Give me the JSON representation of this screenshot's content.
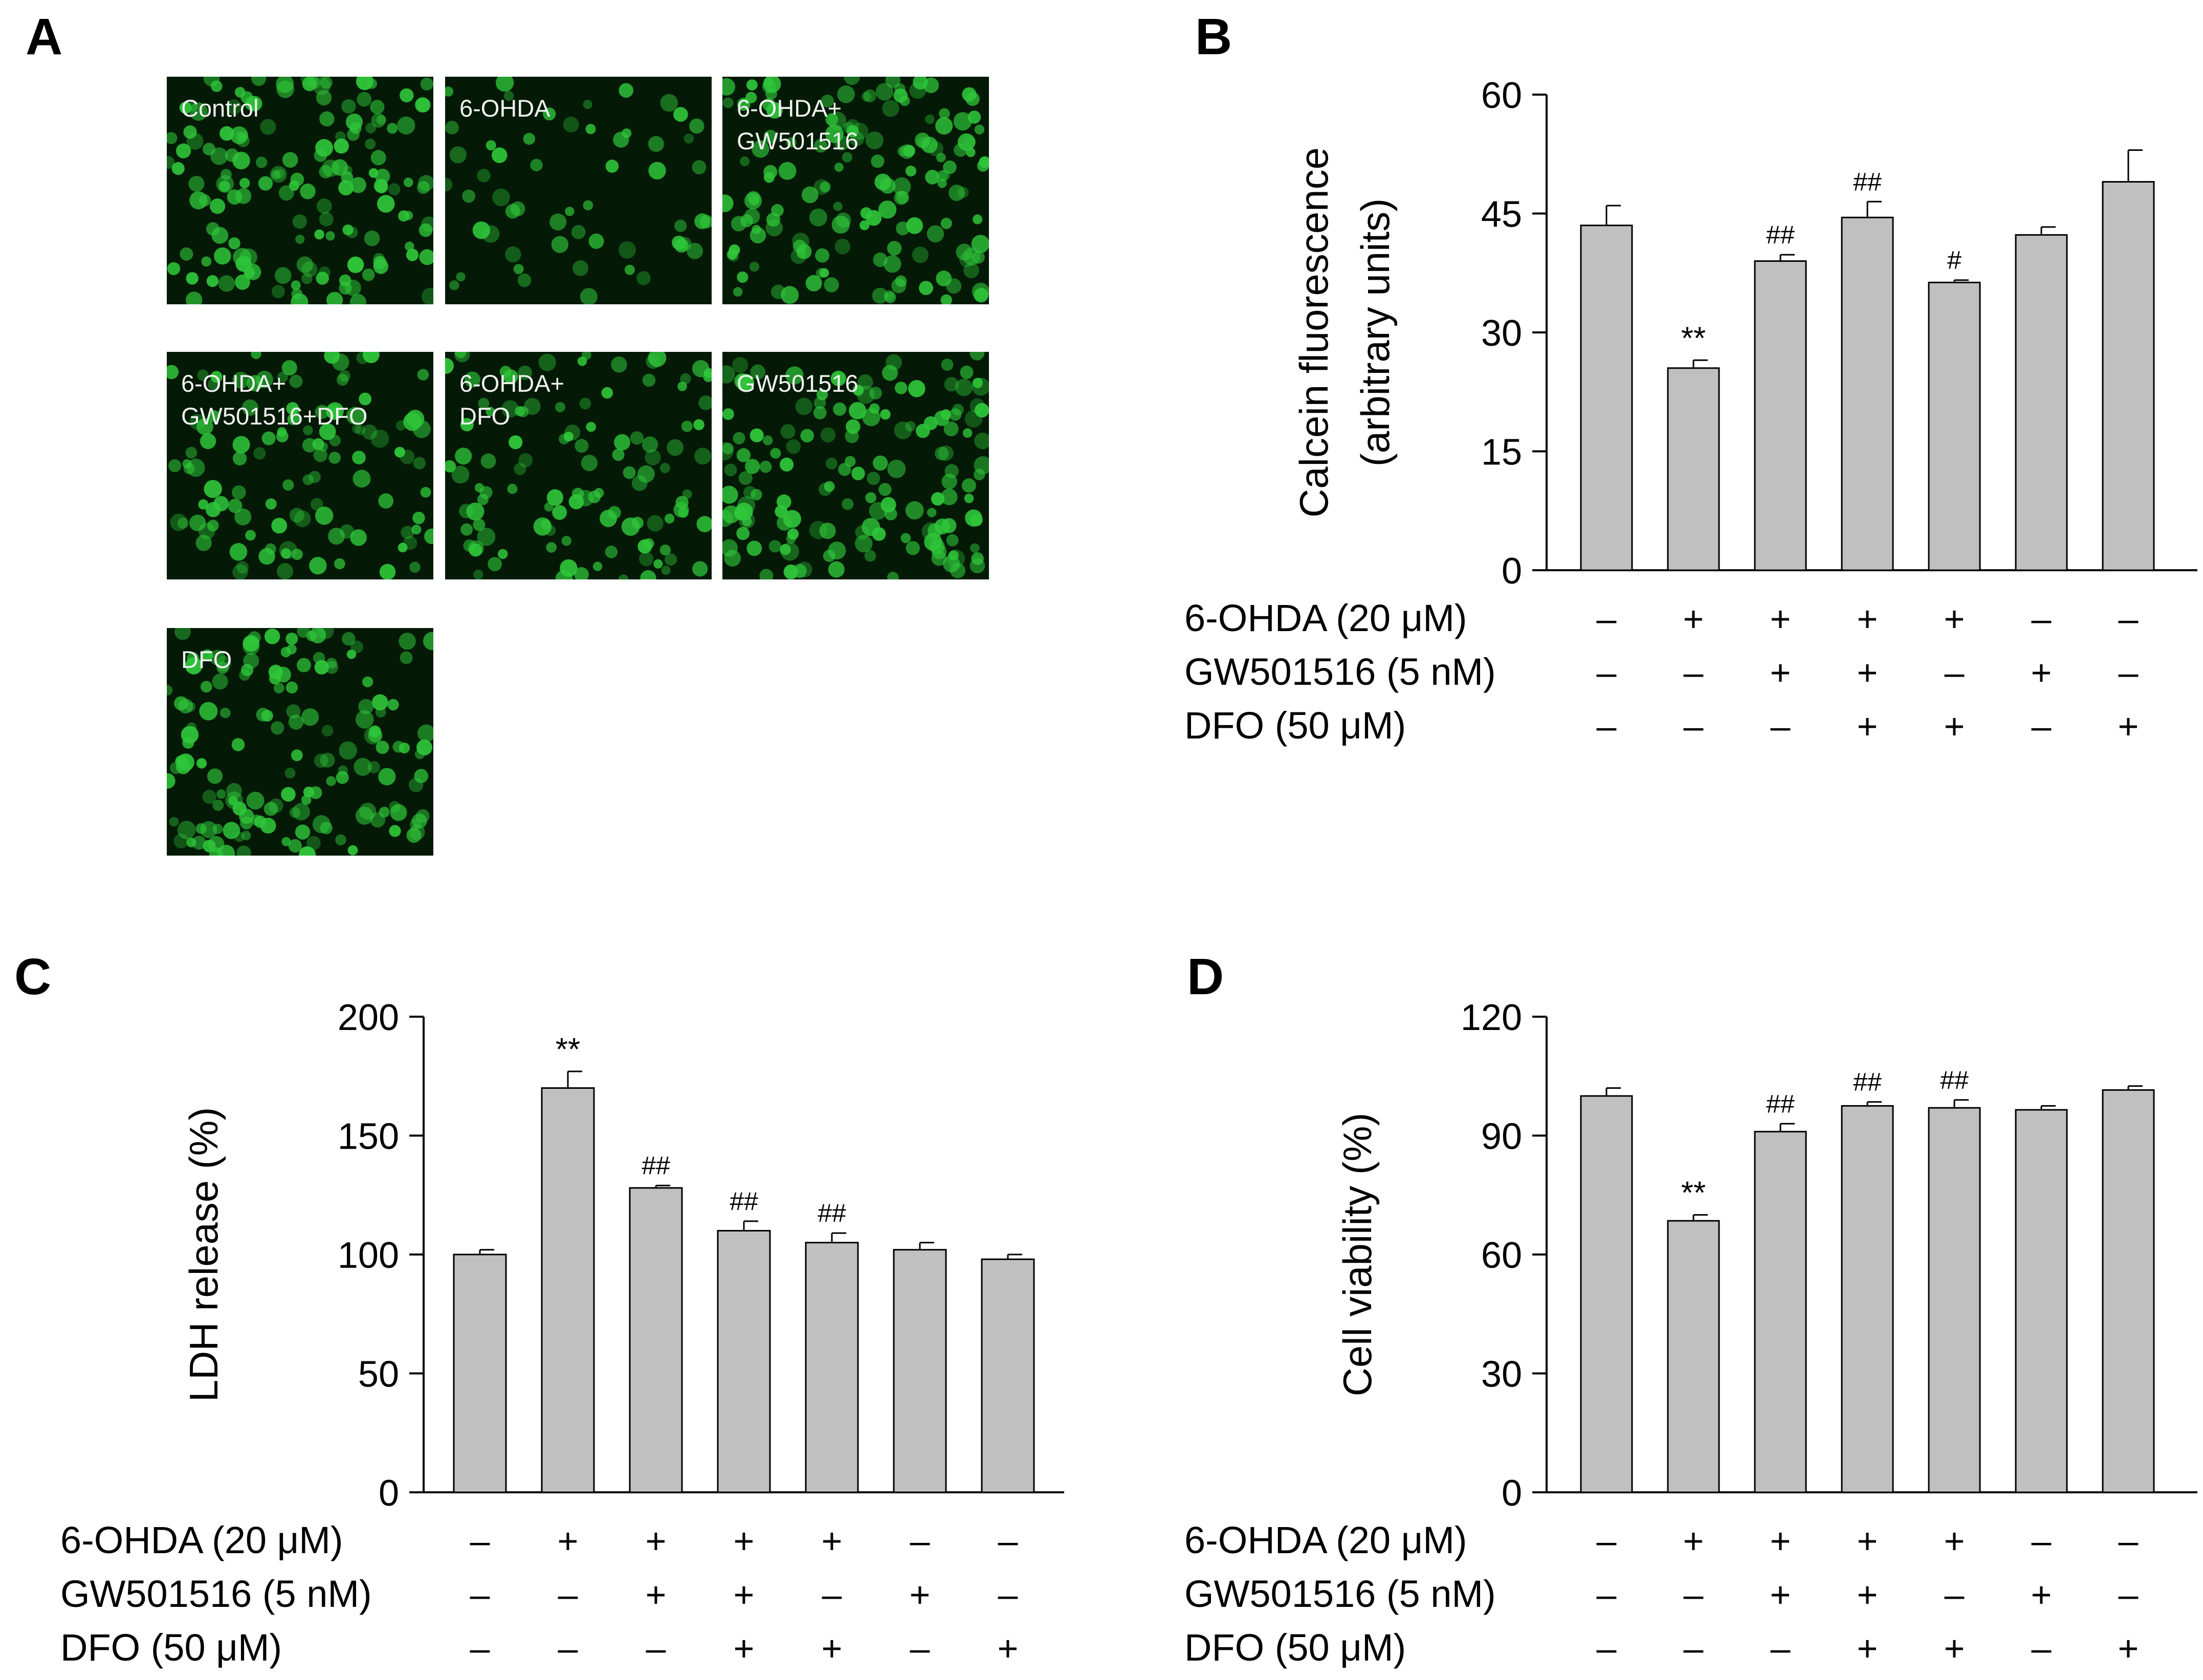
{
  "figure": {
    "panel_letters": {
      "A": "A",
      "B": "B",
      "C": "C",
      "D": "D"
    },
    "colors": {
      "bar_fill": "#c0c0c0",
      "bar_stroke": "#000000",
      "cell_fluorescence": "#2fc63a",
      "image_background": "#041a06"
    }
  },
  "micrographs": {
    "tiles": [
      {
        "label": "Control",
        "density": "high"
      },
      {
        "label": "6-OHDA",
        "density": "low"
      },
      {
        "label": "6-OHDA+\nGW501516",
        "density": "high"
      },
      {
        "label": "6-OHDA+\nGW501516+DFO",
        "density": "medium"
      },
      {
        "label": "6-OHDA+\nDFO",
        "density": "medium"
      },
      {
        "label": "GW501516",
        "density": "high"
      },
      {
        "label": "DFO",
        "density": "high"
      }
    ],
    "scale_bar": true
  },
  "chart_data": [
    {
      "panel": "B",
      "type": "bar",
      "ylabel": "Calcein fluorescence",
      "ylabel2": "(arbitrary units)",
      "ylim": [
        0,
        60
      ],
      "yticks": [
        0,
        15,
        30,
        45,
        60
      ],
      "values": [
        43.5,
        25.5,
        39,
        44.5,
        36.3,
        42.3,
        49
      ],
      "errors": [
        2.5,
        1,
        0.8,
        2,
        0.3,
        1,
        4
      ],
      "annotations": [
        "",
        "**",
        "##",
        "##",
        "#",
        "",
        ""
      ],
      "treatments": [
        {
          "label": "6-OHDA (20 μM)",
          "signs": [
            "–",
            "+",
            "+",
            "+",
            "+",
            "–",
            "–"
          ]
        },
        {
          "label": "GW501516 (5 nM)",
          "signs": [
            "–",
            "–",
            "+",
            "+",
            "–",
            "+",
            "–"
          ]
        },
        {
          "label": "DFO (50 μM)",
          "signs": [
            "–",
            "–",
            "–",
            "+",
            "+",
            "–",
            "+"
          ]
        }
      ]
    },
    {
      "panel": "C",
      "type": "bar",
      "ylabel": "LDH release (%)",
      "ylabel2": "",
      "ylim": [
        0,
        200
      ],
      "yticks": [
        0,
        50,
        100,
        150,
        200
      ],
      "values": [
        100,
        170,
        128,
        110,
        105,
        102,
        98
      ],
      "errors": [
        2,
        7,
        1,
        4,
        4,
        3,
        2
      ],
      "annotations": [
        "",
        "**",
        "##",
        "##",
        "##",
        "",
        ""
      ],
      "treatments": [
        {
          "label": "6-OHDA (20 μM)",
          "signs": [
            "–",
            "+",
            "+",
            "+",
            "+",
            "–",
            "–"
          ]
        },
        {
          "label": "GW501516 (5 nM)",
          "signs": [
            "–",
            "–",
            "+",
            "+",
            "–",
            "+",
            "–"
          ]
        },
        {
          "label": "DFO (50 μM)",
          "signs": [
            "–",
            "–",
            "–",
            "+",
            "+",
            "–",
            "+"
          ]
        }
      ]
    },
    {
      "panel": "D",
      "type": "bar",
      "ylabel": "Cell viability (%)",
      "ylabel2": "",
      "ylim": [
        0,
        120
      ],
      "yticks": [
        0,
        30,
        60,
        90,
        120
      ],
      "values": [
        100,
        68.5,
        91,
        97.5,
        97,
        96.5,
        101.5
      ],
      "errors": [
        2,
        1.5,
        2,
        1,
        2,
        1,
        1
      ],
      "annotations": [
        "",
        "**",
        "##",
        "##",
        "##",
        "",
        ""
      ],
      "treatments": [
        {
          "label": "6-OHDA (20 μM)",
          "signs": [
            "–",
            "+",
            "+",
            "+",
            "+",
            "–",
            "–"
          ]
        },
        {
          "label": "GW501516 (5 nM)",
          "signs": [
            "–",
            "–",
            "+",
            "+",
            "–",
            "+",
            "–"
          ]
        },
        {
          "label": "DFO (50 μM)",
          "signs": [
            "–",
            "–",
            "–",
            "+",
            "+",
            "–",
            "+"
          ]
        }
      ]
    }
  ]
}
